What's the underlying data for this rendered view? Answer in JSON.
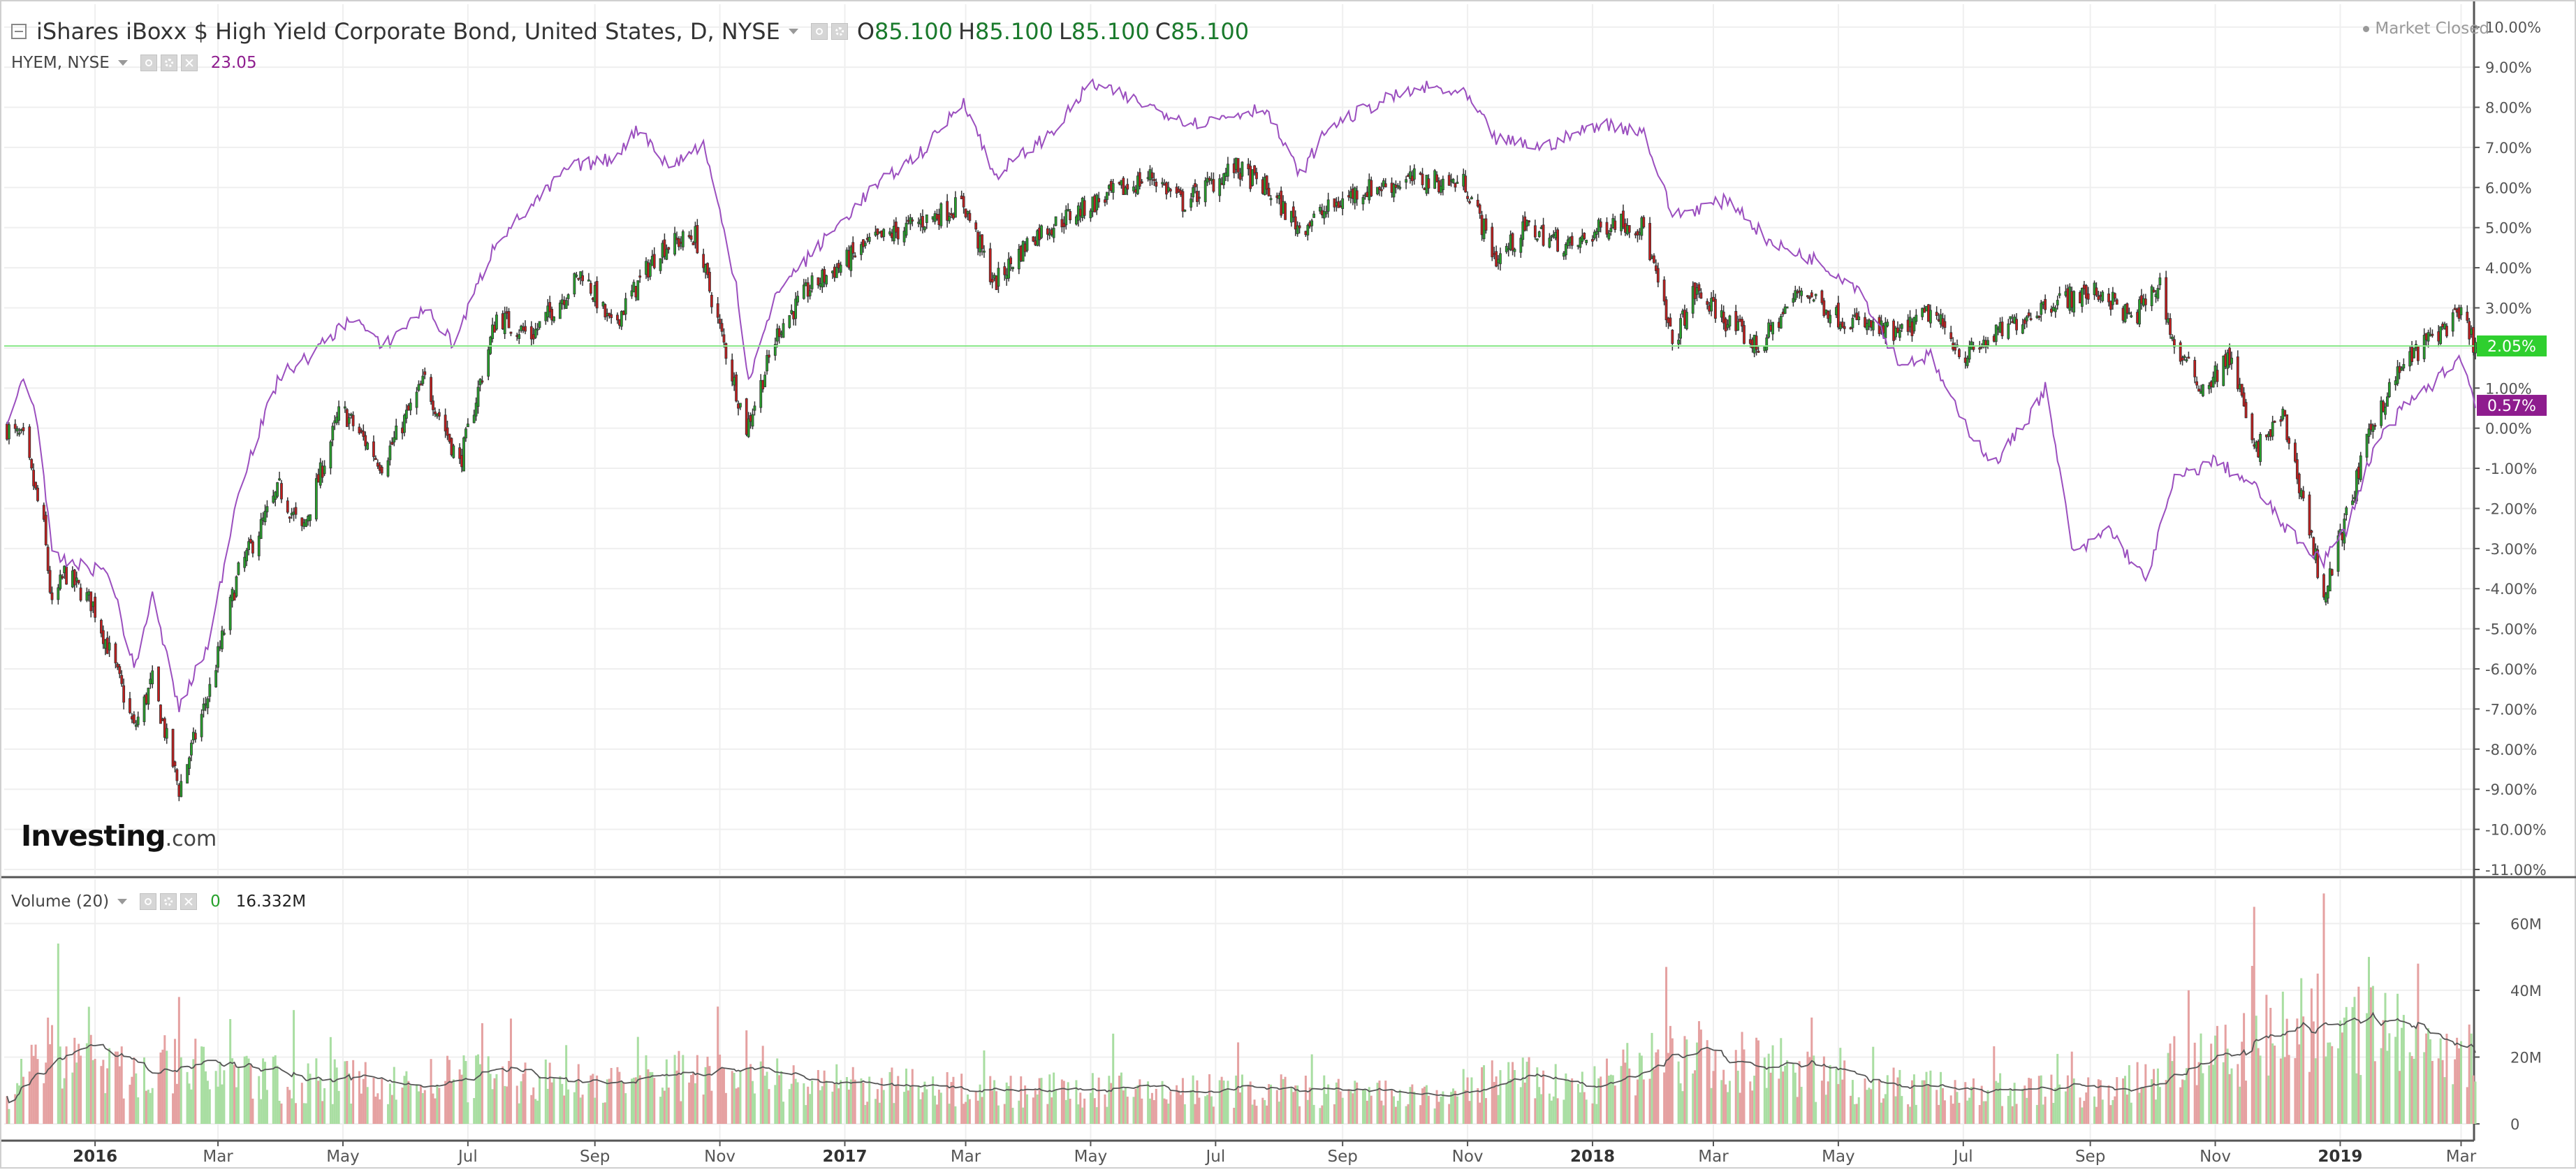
{
  "main_legend": {
    "title": "iShares iBoxx $ High Yield Corporate Bond, United States, D, NYSE",
    "open_label": "O",
    "open": "85.100",
    "high_label": "H",
    "high": "85.100",
    "low_label": "L",
    "low": "85.100",
    "close_label": "C",
    "close": "85.100"
  },
  "compare_legend": {
    "symbol": "HYEM, NYSE",
    "value": "23.05"
  },
  "volume_legend": {
    "title": "Volume (20)",
    "current": "0",
    "ma": "16.332M"
  },
  "market_status": "Market Closed",
  "logo": {
    "main": "Investing",
    "suffix": ".com"
  },
  "colors": {
    "up": "#27a12c",
    "down": "#c41e1e",
    "compare_line": "#9b4fbf",
    "vol_up": "#a9dea2",
    "vol_down": "#e5a1a1",
    "vol_ma": "#555555",
    "current_line": "#8be88b",
    "current_tag": "#2fcf2f",
    "compare_tag": "#8e1c8e"
  },
  "chart_data": {
    "type": "candlestick",
    "price_axis": {
      "unit": "percent",
      "ylim": [
        -11,
        10.5
      ],
      "tick_labels": [
        "10.00%",
        "9.00%",
        "8.00%",
        "7.00%",
        "6.00%",
        "5.00%",
        "4.00%",
        "3.00%",
        "2.00%",
        "1.00%",
        "0.00%",
        "-1.00%",
        "-2.00%",
        "-3.00%",
        "-4.00%",
        "-5.00%",
        "-6.00%",
        "-7.00%",
        "-8.00%",
        "-9.00%",
        "-10.00%",
        "-11.00%"
      ],
      "tick_values": [
        10,
        9,
        8,
        7,
        6,
        5,
        4,
        3,
        2,
        1,
        0,
        -1,
        -2,
        -3,
        -4,
        -5,
        -6,
        -7,
        -8,
        -9,
        -10,
        -11
      ]
    },
    "volume_axis": {
      "ylim": [
        0,
        72
      ],
      "unit": "millions",
      "tick_labels": [
        "60M",
        "40M",
        "20M",
        "0"
      ],
      "tick_values": [
        60,
        40,
        20,
        0
      ]
    },
    "x_axis": {
      "labels": [
        "2016",
        "Mar",
        "May",
        "Jul",
        "Sep",
        "Nov",
        "2017",
        "Mar",
        "May",
        "Jul",
        "Sep",
        "Nov",
        "2018",
        "Mar",
        "May",
        "Jul",
        "Sep",
        "Nov",
        "2019",
        "Mar"
      ],
      "label_dates": [
        "2016-01-01",
        "2016-03-01",
        "2016-05-01",
        "2016-07-01",
        "2016-09-01",
        "2016-11-01",
        "2017-01-01",
        "2017-03-01",
        "2017-05-01",
        "2017-07-01",
        "2017-09-01",
        "2017-11-01",
        "2018-01-01",
        "2018-03-01",
        "2018-05-01",
        "2018-07-01",
        "2018-09-01",
        "2018-11-01",
        "2019-01-01",
        "2019-03-01"
      ],
      "year_labels": [
        "2016",
        "2017",
        "2018",
        "2019"
      ],
      "range": [
        "2015-11-19",
        "2019-03-08"
      ]
    },
    "main_series_path": [
      {
        "x": "2015-11-19",
        "y": 0.0
      },
      {
        "x": "2015-11-27",
        "y": -0.3
      },
      {
        "x": "2015-12-07",
        "y": -2.5
      },
      {
        "x": "2015-12-11",
        "y": -4.5
      },
      {
        "x": "2015-12-17",
        "y": -3.6
      },
      {
        "x": "2015-12-31",
        "y": -4.4
      },
      {
        "x": "2016-01-11",
        "y": -6.0
      },
      {
        "x": "2016-01-20",
        "y": -7.5
      },
      {
        "x": "2016-01-29",
        "y": -6.3
      },
      {
        "x": "2016-02-11",
        "y": -9.0
      },
      {
        "x": "2016-02-26",
        "y": -6.5
      },
      {
        "x": "2016-03-11",
        "y": -3.6
      },
      {
        "x": "2016-03-31",
        "y": -1.5
      },
      {
        "x": "2016-04-11",
        "y": -2.6
      },
      {
        "x": "2016-04-30",
        "y": 0.5
      },
      {
        "x": "2016-05-20",
        "y": -0.9
      },
      {
        "x": "2016-06-10",
        "y": 1.2
      },
      {
        "x": "2016-06-27",
        "y": -0.9
      },
      {
        "x": "2016-07-15",
        "y": 2.8
      },
      {
        "x": "2016-08-01",
        "y": 2.3
      },
      {
        "x": "2016-08-26",
        "y": 3.9
      },
      {
        "x": "2016-09-09",
        "y": 2.5
      },
      {
        "x": "2016-10-03",
        "y": 4.5
      },
      {
        "x": "2016-10-20",
        "y": 4.8
      },
      {
        "x": "2016-11-04",
        "y": 1.9
      },
      {
        "x": "2016-11-14",
        "y": 0.0
      },
      {
        "x": "2016-11-30",
        "y": 2.5
      },
      {
        "x": "2016-12-15",
        "y": 3.5
      },
      {
        "x": "2017-01-13",
        "y": 4.6
      },
      {
        "x": "2017-01-31",
        "y": 5.0
      },
      {
        "x": "2017-02-28",
        "y": 5.6
      },
      {
        "x": "2017-03-15",
        "y": 3.6
      },
      {
        "x": "2017-04-03",
        "y": 4.8
      },
      {
        "x": "2017-04-28",
        "y": 5.5
      },
      {
        "x": "2017-05-31",
        "y": 6.3
      },
      {
        "x": "2017-06-15",
        "y": 5.6
      },
      {
        "x": "2017-07-10",
        "y": 6.5
      },
      {
        "x": "2017-07-25",
        "y": 6.0
      },
      {
        "x": "2017-08-11",
        "y": 5.0
      },
      {
        "x": "2017-09-08",
        "y": 5.9
      },
      {
        "x": "2017-10-06",
        "y": 6.2
      },
      {
        "x": "2017-10-31",
        "y": 6.1
      },
      {
        "x": "2017-11-15",
        "y": 4.2
      },
      {
        "x": "2017-11-30",
        "y": 5.0
      },
      {
        "x": "2017-12-22",
        "y": 4.5
      },
      {
        "x": "2018-01-12",
        "y": 5.2
      },
      {
        "x": "2018-01-26",
        "y": 5.0
      },
      {
        "x": "2018-02-09",
        "y": 2.1
      },
      {
        "x": "2018-02-20",
        "y": 3.4
      },
      {
        "x": "2018-03-09",
        "y": 2.6
      },
      {
        "x": "2018-03-23",
        "y": 2.0
      },
      {
        "x": "2018-04-13",
        "y": 3.5
      },
      {
        "x": "2018-04-30",
        "y": 2.8
      },
      {
        "x": "2018-05-30",
        "y": 2.3
      },
      {
        "x": "2018-06-15",
        "y": 2.9
      },
      {
        "x": "2018-07-02",
        "y": 1.8
      },
      {
        "x": "2018-07-31",
        "y": 2.8
      },
      {
        "x": "2018-08-15",
        "y": 3.2
      },
      {
        "x": "2018-09-07",
        "y": 3.4
      },
      {
        "x": "2018-09-21",
        "y": 2.7
      },
      {
        "x": "2018-10-05",
        "y": 3.6
      },
      {
        "x": "2018-10-12",
        "y": 2.0
      },
      {
        "x": "2018-10-26",
        "y": 1.0
      },
      {
        "x": "2018-11-09",
        "y": 1.8
      },
      {
        "x": "2018-11-20",
        "y": -0.6
      },
      {
        "x": "2018-12-04",
        "y": 0.3
      },
      {
        "x": "2018-12-14",
        "y": -1.8
      },
      {
        "x": "2018-12-24",
        "y": -4.2
      },
      {
        "x": "2019-01-04",
        "y": -2.2
      },
      {
        "x": "2019-01-18",
        "y": 0.3
      },
      {
        "x": "2019-02-01",
        "y": 1.6
      },
      {
        "x": "2019-02-15",
        "y": 2.3
      },
      {
        "x": "2019-03-01",
        "y": 2.8
      },
      {
        "x": "2019-03-08",
        "y": 2.05
      }
    ],
    "compare_series": {
      "name": "HYEM, NYSE",
      "points": [
        {
          "x": "2015-11-19",
          "y": 0.0
        },
        {
          "x": "2015-11-27",
          "y": 1.3
        },
        {
          "x": "2015-12-04",
          "y": 0.2
        },
        {
          "x": "2015-12-11",
          "y": -3.2
        },
        {
          "x": "2015-12-22",
          "y": -3.4
        },
        {
          "x": "2016-01-08",
          "y": -3.6
        },
        {
          "x": "2016-01-20",
          "y": -6.0
        },
        {
          "x": "2016-01-29",
          "y": -4.2
        },
        {
          "x": "2016-02-11",
          "y": -7.0
        },
        {
          "x": "2016-02-26",
          "y": -5.3
        },
        {
          "x": "2016-03-11",
          "y": -1.5
        },
        {
          "x": "2016-03-31",
          "y": 1.3
        },
        {
          "x": "2016-04-15",
          "y": 1.8
        },
        {
          "x": "2016-05-06",
          "y": 2.8
        },
        {
          "x": "2016-05-20",
          "y": 2.0
        },
        {
          "x": "2016-06-10",
          "y": 3.0
        },
        {
          "x": "2016-06-24",
          "y": 2.1
        },
        {
          "x": "2016-07-15",
          "y": 4.7
        },
        {
          "x": "2016-08-01",
          "y": 5.5
        },
        {
          "x": "2016-08-19",
          "y": 6.5
        },
        {
          "x": "2016-09-09",
          "y": 6.7
        },
        {
          "x": "2016-09-23",
          "y": 7.5
        },
        {
          "x": "2016-10-07",
          "y": 6.5
        },
        {
          "x": "2016-10-24",
          "y": 7.1
        },
        {
          "x": "2016-11-09",
          "y": 3.6
        },
        {
          "x": "2016-11-15",
          "y": 1.2
        },
        {
          "x": "2016-11-30",
          "y": 3.5
        },
        {
          "x": "2016-12-15",
          "y": 4.3
        },
        {
          "x": "2017-01-13",
          "y": 5.9
        },
        {
          "x": "2017-02-10",
          "y": 7.0
        },
        {
          "x": "2017-02-28",
          "y": 8.2
        },
        {
          "x": "2017-03-15",
          "y": 6.3
        },
        {
          "x": "2017-04-13",
          "y": 7.4
        },
        {
          "x": "2017-05-01",
          "y": 8.6
        },
        {
          "x": "2017-05-31",
          "y": 8.0
        },
        {
          "x": "2017-06-21",
          "y": 7.6
        },
        {
          "x": "2017-07-25",
          "y": 8.0
        },
        {
          "x": "2017-08-11",
          "y": 6.3
        },
        {
          "x": "2017-08-25",
          "y": 7.5
        },
        {
          "x": "2017-09-22",
          "y": 8.2
        },
        {
          "x": "2017-10-13",
          "y": 8.5
        },
        {
          "x": "2017-10-31",
          "y": 8.3
        },
        {
          "x": "2017-11-15",
          "y": 7.2
        },
        {
          "x": "2017-12-08",
          "y": 7.0
        },
        {
          "x": "2018-01-05",
          "y": 7.6
        },
        {
          "x": "2018-01-26",
          "y": 7.4
        },
        {
          "x": "2018-02-09",
          "y": 5.3
        },
        {
          "x": "2018-03-09",
          "y": 5.7
        },
        {
          "x": "2018-03-29",
          "y": 4.6
        },
        {
          "x": "2018-04-20",
          "y": 4.2
        },
        {
          "x": "2018-05-11",
          "y": 3.5
        },
        {
          "x": "2018-05-31",
          "y": 1.6
        },
        {
          "x": "2018-06-15",
          "y": 1.8
        },
        {
          "x": "2018-06-29",
          "y": 0.3
        },
        {
          "x": "2018-07-16",
          "y": -0.9
        },
        {
          "x": "2018-08-01",
          "y": 0.2
        },
        {
          "x": "2018-08-10",
          "y": 1.0
        },
        {
          "x": "2018-08-24",
          "y": -3.2
        },
        {
          "x": "2018-09-10",
          "y": -2.5
        },
        {
          "x": "2018-09-28",
          "y": -3.8
        },
        {
          "x": "2018-10-12",
          "y": -1.3
        },
        {
          "x": "2018-11-01",
          "y": -0.8
        },
        {
          "x": "2018-11-21",
          "y": -1.5
        },
        {
          "x": "2018-12-07",
          "y": -2.6
        },
        {
          "x": "2018-12-24",
          "y": -3.3
        },
        {
          "x": "2019-01-04",
          "y": -2.5
        },
        {
          "x": "2019-01-18",
          "y": -0.4
        },
        {
          "x": "2019-02-01",
          "y": 0.5
        },
        {
          "x": "2019-02-15",
          "y": 1.1
        },
        {
          "x": "2019-03-01",
          "y": 1.8
        },
        {
          "x": "2019-03-08",
          "y": 0.57
        }
      ]
    },
    "volume_profile": [
      {
        "x": "2015-11-19",
        "v": 8
      },
      {
        "x": "2015-12-11",
        "v": 22
      },
      {
        "x": "2016-01-15",
        "v": 15
      },
      {
        "x": "2016-02-12",
        "v": 18
      },
      {
        "x": "2016-04-01",
        "v": 13
      },
      {
        "x": "2016-06-01",
        "v": 12
      },
      {
        "x": "2016-07-01",
        "v": 14
      },
      {
        "x": "2016-09-01",
        "v": 12
      },
      {
        "x": "2016-11-10",
        "v": 17
      },
      {
        "x": "2016-12-15",
        "v": 12
      },
      {
        "x": "2017-03-01",
        "v": 10
      },
      {
        "x": "2017-05-01",
        "v": 10
      },
      {
        "x": "2017-08-01",
        "v": 10
      },
      {
        "x": "2017-10-15",
        "v": 8
      },
      {
        "x": "2017-11-15",
        "v": 14
      },
      {
        "x": "2018-01-01",
        "v": 11
      },
      {
        "x": "2018-02-09",
        "v": 22
      },
      {
        "x": "2018-04-01",
        "v": 16
      },
      {
        "x": "2018-06-01",
        "v": 11
      },
      {
        "x": "2018-08-01",
        "v": 10
      },
      {
        "x": "2018-09-15",
        "v": 10
      },
      {
        "x": "2018-10-20",
        "v": 20
      },
      {
        "x": "2018-11-20",
        "v": 26
      },
      {
        "x": "2018-12-20",
        "v": 30
      },
      {
        "x": "2019-01-15",
        "v": 28
      },
      {
        "x": "2019-02-15",
        "v": 22
      },
      {
        "x": "2019-03-08",
        "v": 17
      }
    ],
    "volume_spikes": [
      {
        "x": "2015-12-14",
        "v": 54
      },
      {
        "x": "2016-02-11",
        "v": 38
      },
      {
        "x": "2016-11-14",
        "v": 28
      },
      {
        "x": "2017-03-10",
        "v": 22
      },
      {
        "x": "2018-02-06",
        "v": 47
      },
      {
        "x": "2018-03-23",
        "v": 25
      },
      {
        "x": "2018-10-19",
        "v": 40
      },
      {
        "x": "2018-11-20",
        "v": 65
      },
      {
        "x": "2018-12-24",
        "v": 69
      },
      {
        "x": "2019-01-04",
        "v": 35
      },
      {
        "x": "2019-01-15",
        "v": 50
      },
      {
        "x": "2019-02-22",
        "v": 27
      }
    ],
    "current_value": {
      "label": "2.05%",
      "y": 2.05
    },
    "compare_current": {
      "label": "0.57%",
      "y": 0.57
    }
  }
}
